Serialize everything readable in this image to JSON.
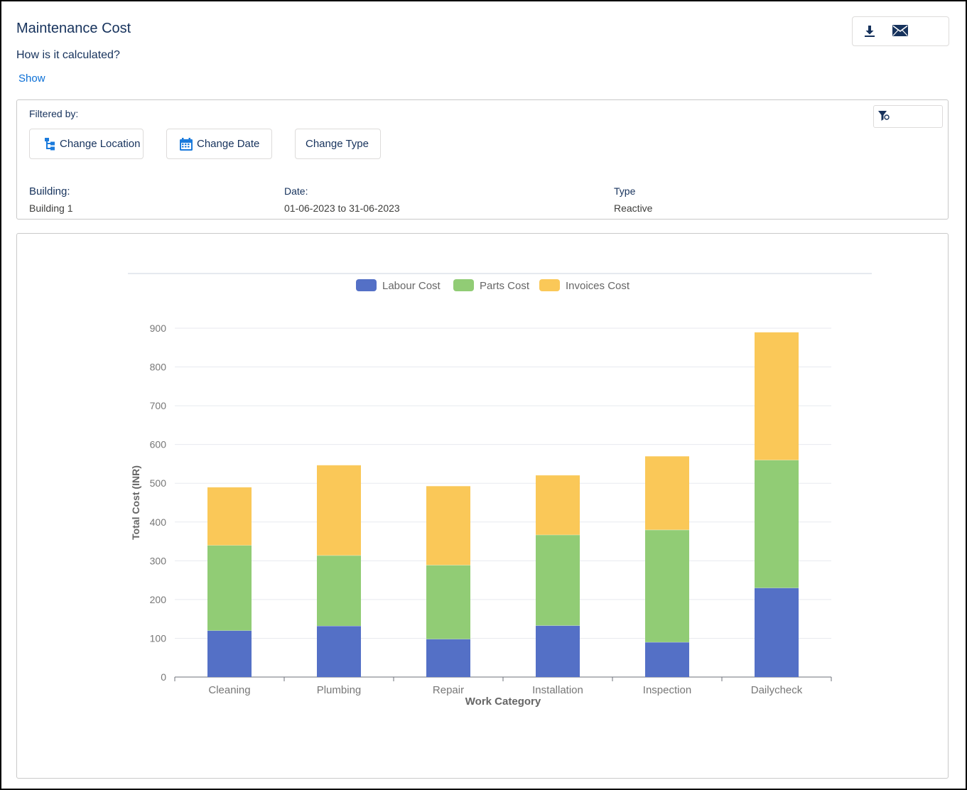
{
  "header": {
    "title": "Maintenance Cost",
    "subtitle": "How is it calculated?",
    "show_link": "Show"
  },
  "actions": {
    "download_icon": "download-icon",
    "email_icon": "mail-icon"
  },
  "filters": {
    "filtered_by_label": "Filtered by:",
    "filter_icon": "filter-icon",
    "change_location_label": "Change Location",
    "change_date_label": "Change Date",
    "change_type_label": "Change Type",
    "building_label": "Building:",
    "building_value": "Building 1",
    "date_label": "Date:",
    "date_value": "01-06-2023 to 31-06-2023",
    "type_label": "Type",
    "type_value": "Reactive"
  },
  "colors": {
    "labour": "#5470c6",
    "parts": "#91cc75",
    "invoices": "#fac858",
    "link": "#0b6fd6",
    "heading": "#16325c"
  },
  "chart_data": {
    "type": "bar",
    "stacked": true,
    "xlabel": "Work Category",
    "ylabel": "Total Cost (INR)",
    "ylim": [
      0,
      900
    ],
    "yticks": [
      0,
      100,
      200,
      300,
      400,
      500,
      600,
      700,
      800,
      900
    ],
    "grid": true,
    "legend_position": "top-center",
    "categories": [
      "Cleaning",
      "Plumbing",
      "Repair",
      "Installation",
      "Inspection",
      "Dailycheck"
    ],
    "series": [
      {
        "name": "Labour Cost",
        "color": "#5470c6",
        "values": [
          120,
          132,
          98,
          133,
          90,
          230
        ]
      },
      {
        "name": "Parts Cost",
        "color": "#91cc75",
        "values": [
          220,
          182,
          191,
          234,
          290,
          330
        ]
      },
      {
        "name": "Invoices Cost",
        "color": "#fac858",
        "values": [
          150,
          233,
          204,
          154,
          190,
          330
        ]
      }
    ]
  }
}
